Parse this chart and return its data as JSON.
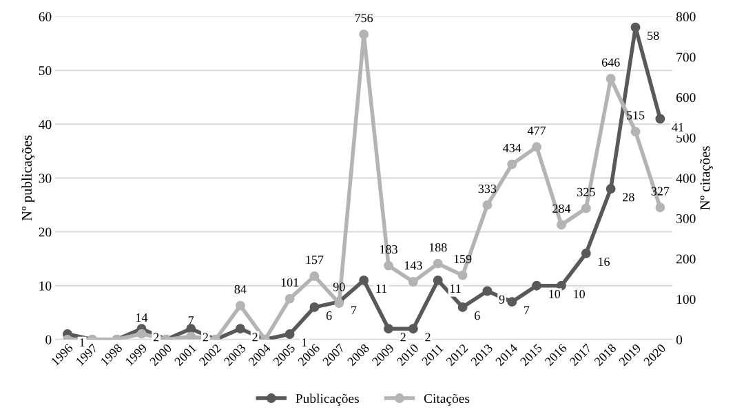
{
  "chart_data": {
    "type": "line",
    "xlabel": null,
    "ylabel": "Nº publicações",
    "y2label": "Nº citações",
    "categories": [
      "1996",
      "1997",
      "1998",
      "1999",
      "2000",
      "2001",
      "2002",
      "2003",
      "2004",
      "2005",
      "2006",
      "2007",
      "2008",
      "2009",
      "2010",
      "2011",
      "2012",
      "2013",
      "2014",
      "2015",
      "2016",
      "2017",
      "2018",
      "2019",
      "2020"
    ],
    "series": [
      {
        "name": "Publicações",
        "color": "#595959",
        "values": [
          1,
          0,
          0,
          2,
          0,
          2,
          0,
          2,
          0,
          1,
          6,
          7,
          11,
          2,
          2,
          11,
          6,
          9,
          7,
          10,
          10,
          16,
          28,
          58,
          41
        ],
        "value_labels": [
          "1",
          null,
          null,
          "2",
          null,
          "2",
          null,
          "2",
          null,
          "1",
          "6",
          "7",
          "11",
          "2",
          "2",
          "11",
          "6",
          "9",
          "7",
          "10",
          "10",
          "16",
          "28",
          "58",
          "41"
        ]
      },
      {
        "name": "Citações",
        "color": "#b4b4b4",
        "axis": "y2",
        "values": [
          0,
          0,
          0,
          14,
          0,
          7,
          0,
          84,
          0,
          101,
          157,
          90,
          756,
          183,
          143,
          188,
          159,
          333,
          434,
          477,
          284,
          325,
          646,
          515,
          327
        ],
        "value_labels": [
          null,
          null,
          null,
          "14",
          null,
          "7",
          null,
          "84",
          null,
          "101",
          "157",
          "90",
          "756",
          "183",
          "143",
          "188",
          "159",
          "333",
          "434",
          "477",
          "284",
          "325",
          "646",
          "515",
          "327"
        ]
      }
    ],
    "ylim": [
      0,
      60
    ],
    "yticks": [
      0,
      10,
      20,
      30,
      40,
      50,
      60
    ],
    "y2lim": [
      0,
      800
    ],
    "y2ticks": [
      0,
      100,
      200,
      300,
      400,
      500,
      600,
      700,
      800
    ],
    "grid": "y",
    "legend": "bottom",
    "marker": "circle",
    "line_style": "solid"
  }
}
